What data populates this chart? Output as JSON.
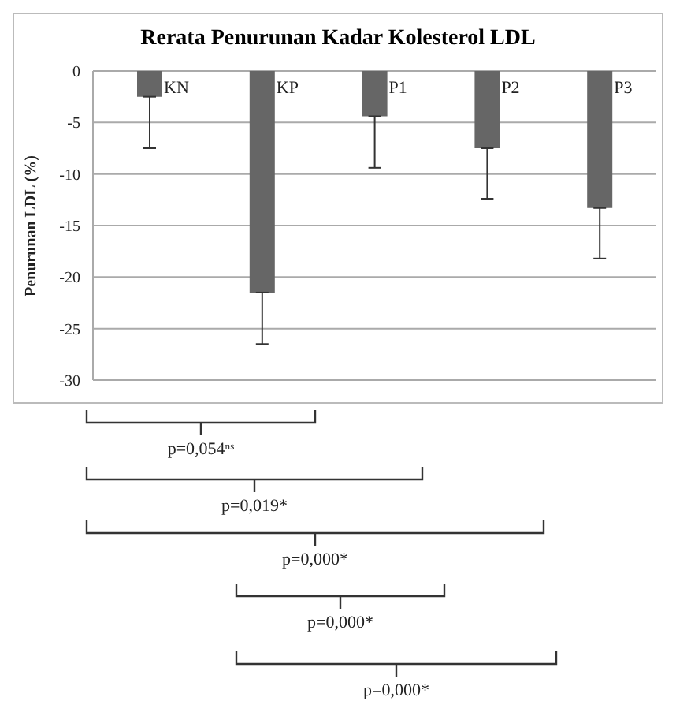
{
  "chart_data": {
    "type": "bar",
    "title": "Rerata Penurunan Kadar Kolesterol LDL",
    "ylabel": "Penurunan LDL (%)",
    "categories": [
      "KN",
      "KP",
      "P1",
      "P2",
      "P3"
    ],
    "values": [
      -2.5,
      -21.5,
      -4.4,
      -7.5,
      -13.3
    ],
    "errors": [
      [
        -7.5,
        -2.5
      ],
      [
        -26.5,
        -21.5
      ],
      [
        -9.4,
        -4.4
      ],
      [
        -12.4,
        -7.5
      ],
      [
        -18.2,
        -13.3
      ]
    ],
    "color": "#666666",
    "ylim": [
      -30,
      0
    ],
    "yticks": [
      -30,
      -25,
      -20,
      -15,
      -10,
      -5,
      0
    ],
    "grid": "y",
    "tick_labels": "y",
    "annotations": [
      "p=0,054$^{ns}$",
      "p=0,019*",
      "p=0,000*",
      "p=0,000*",
      "p=0,000*"
    ]
  }
}
